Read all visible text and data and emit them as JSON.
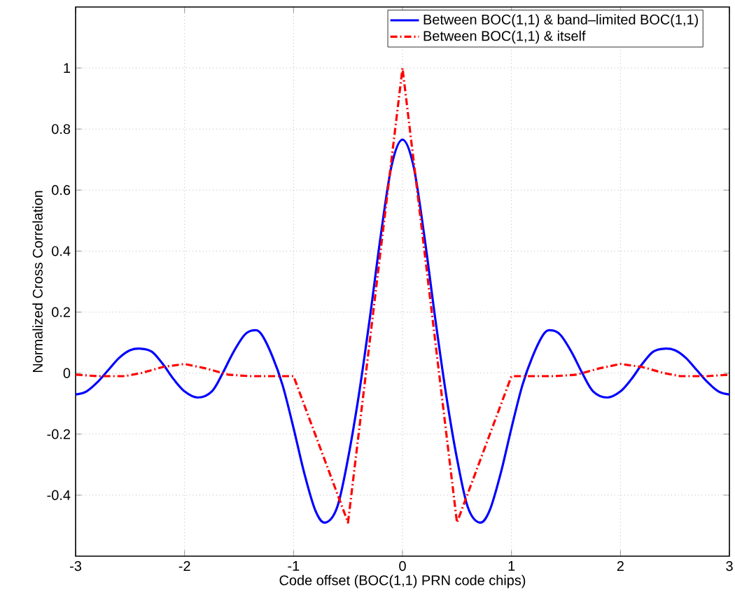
{
  "chart_data": {
    "type": "line",
    "xlabel": "Code offset (BOC(1,1) PRN code chips)",
    "ylabel": "Normalized Cross Correlation",
    "xlim": [
      -3,
      3
    ],
    "ylim": [
      -0.6,
      1.2
    ],
    "xticks": [
      -3,
      -2,
      -1,
      0,
      1,
      2,
      3
    ],
    "yticks": [
      -0.4,
      -0.2,
      0,
      0.2,
      0.4,
      0.6,
      0.8,
      1
    ],
    "grid": true,
    "legend": "top right",
    "marker": "none",
    "series": [
      {
        "name": "Between BOC(1,1) & band–limited BOC(1,1)",
        "color": "#0000ff",
        "line_style": "solid",
        "x": [
          -3,
          -2.9,
          -2.8,
          -2.7,
          -2.6,
          -2.5,
          -2.4,
          -2.3,
          -2.2,
          -2.1,
          -2.0,
          -1.88,
          -1.75,
          -1.65,
          -1.55,
          -1.45,
          -1.37,
          -1.3,
          -1.2,
          -1.1,
          -1.0,
          -0.9,
          -0.8,
          -0.71,
          -0.6,
          -0.5,
          -0.4,
          -0.3,
          -0.2,
          -0.1,
          0,
          0.1,
          0.2,
          0.3,
          0.4,
          0.5,
          0.6,
          0.71,
          0.8,
          0.9,
          1.0,
          1.1,
          1.2,
          1.3,
          1.37,
          1.45,
          1.55,
          1.65,
          1.75,
          1.88,
          2.0,
          2.1,
          2.2,
          2.3,
          2.4,
          2.5,
          2.6,
          2.7,
          2.8,
          2.9,
          3
        ],
        "values": [
          -0.07,
          -0.06,
          -0.03,
          0.01,
          0.05,
          0.075,
          0.08,
          0.07,
          0.03,
          -0.02,
          -0.06,
          -0.08,
          -0.06,
          0.0,
          0.07,
          0.125,
          0.14,
          0.13,
          0.06,
          -0.04,
          -0.18,
          -0.33,
          -0.45,
          -0.49,
          -0.44,
          -0.28,
          -0.07,
          0.18,
          0.45,
          0.68,
          0.765,
          0.68,
          0.45,
          0.18,
          -0.07,
          -0.28,
          -0.44,
          -0.49,
          -0.45,
          -0.33,
          -0.18,
          -0.04,
          0.06,
          0.13,
          0.14,
          0.125,
          0.07,
          0.0,
          -0.06,
          -0.08,
          -0.06,
          -0.02,
          0.03,
          0.07,
          0.08,
          0.075,
          0.05,
          0.01,
          -0.03,
          -0.06,
          -0.07
        ]
      },
      {
        "name": "Between BOC(1,1) & itself",
        "color": "#ff0000",
        "line_style": "dashed",
        "x": [
          -3,
          -2.8,
          -2.55,
          -2.4,
          -2.2,
          -2.0,
          -1.8,
          -1.6,
          -1.4,
          -1.2,
          -1.0,
          -0.5,
          0,
          0.5,
          1.0,
          1.2,
          1.4,
          1.6,
          1.8,
          2.0,
          2.2,
          2.4,
          2.55,
          2.8,
          3
        ],
        "values": [
          -0.005,
          -0.01,
          -0.01,
          0.0,
          0.02,
          0.03,
          0.015,
          -0.005,
          -0.01,
          -0.01,
          -0.01,
          -0.49,
          1,
          -0.49,
          -0.01,
          -0.01,
          -0.01,
          -0.005,
          0.015,
          0.03,
          0.02,
          0.0,
          -0.01,
          -0.01,
          -0.005
        ]
      }
    ]
  }
}
